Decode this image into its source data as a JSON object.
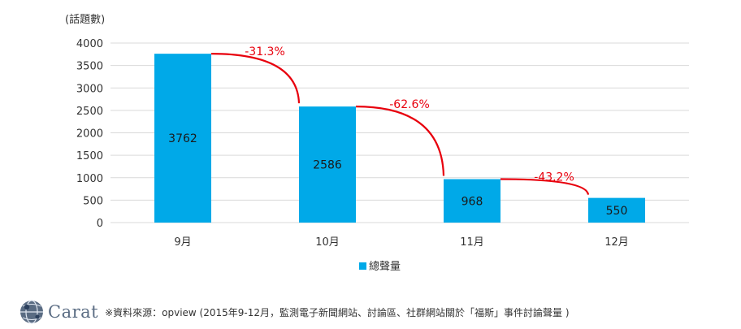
{
  "chart_data": {
    "type": "bar",
    "ylabel": "(話題數)",
    "ylim": [
      0,
      4000
    ],
    "yticks": [
      0,
      500,
      1000,
      1500,
      2000,
      2500,
      3000,
      3500,
      4000
    ],
    "categories": [
      "9月",
      "10月",
      "11月",
      "12月"
    ],
    "series": [
      {
        "name": "總聲量",
        "values": [
          3762,
          2586,
          968,
          550
        ]
      }
    ],
    "annotations": [
      {
        "from": "9月",
        "to": "10月",
        "label": "-31.3%"
      },
      {
        "from": "10月",
        "to": "11月",
        "label": "-62.6%"
      },
      {
        "from": "11月",
        "to": "12月",
        "label": "-43.2%"
      }
    ],
    "grid": true,
    "legend_position": "bottom"
  },
  "colors": {
    "bar": "#00a9e8",
    "annotation": "#e8000d",
    "grid": "#d9d9d9",
    "axis_text": "#333333"
  },
  "footer": {
    "logo_text": "Carat",
    "logo_icon": "carat-globe-icon",
    "source": "※資料來源：opview (2015年9-12月，監測電子新聞網站、討論區、社群網站關於「福斯」事件討論聲量 )"
  }
}
